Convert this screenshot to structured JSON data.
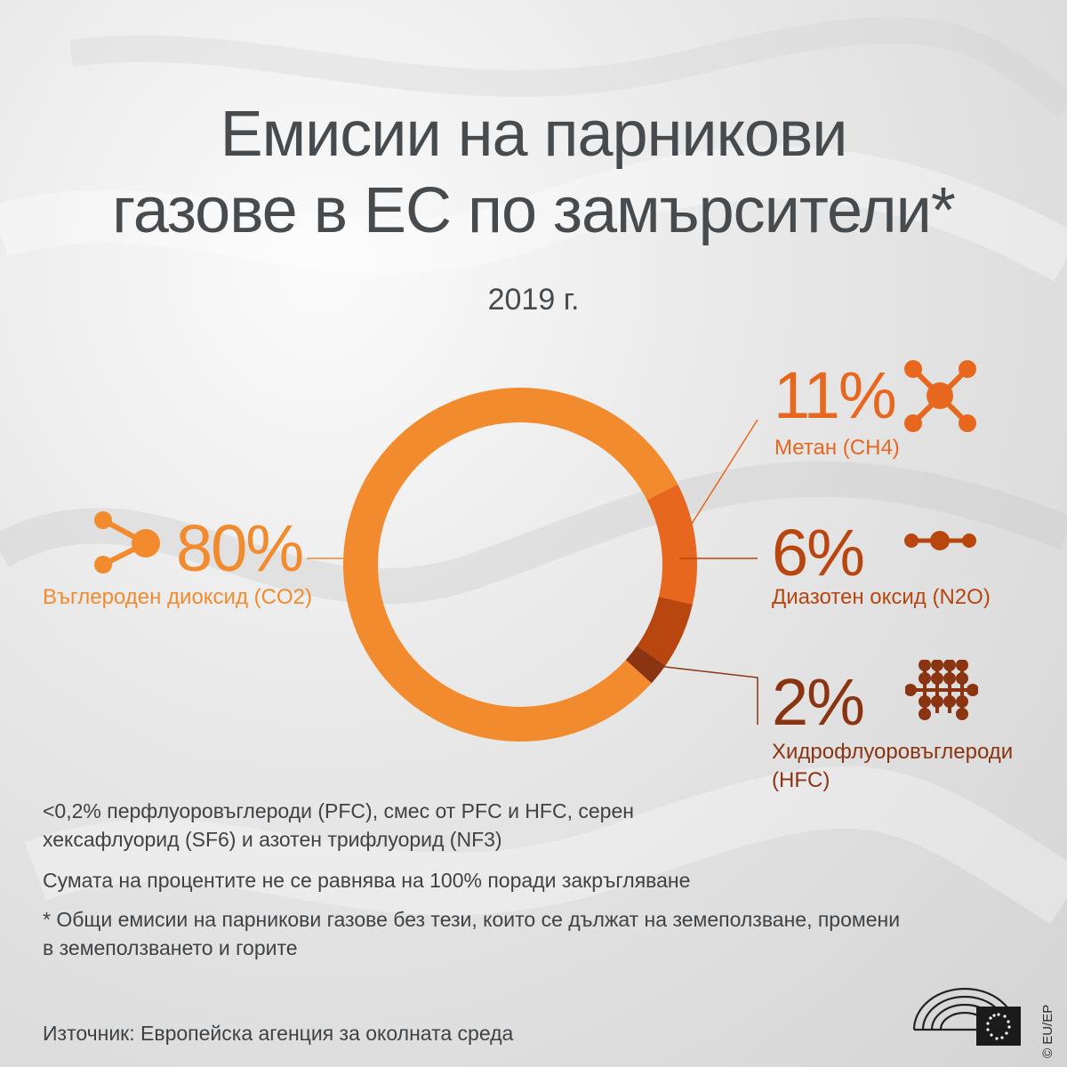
{
  "title_line1": "Емисии на парникови",
  "title_line2": "газове в ЕС по замърсители*",
  "year": "2019 г.",
  "chart_data": {
    "type": "pie",
    "title": "Емисии на парникови газове в ЕС по замърсители*",
    "subtitle": "2019 г.",
    "donut": true,
    "slices": [
      {
        "label": "Въглероден диоксид (CO2)",
        "value": 80,
        "display": "80%",
        "color": "#f28a2e"
      },
      {
        "label": "Метан (CH4)",
        "value": 11,
        "display": "11%",
        "color": "#e8671f"
      },
      {
        "label": "Диазотен оксид (N2O)",
        "value": 6,
        "display": "6%",
        "color": "#b9450f"
      },
      {
        "label": "Хидрофлуоровъглероди (HFC)",
        "value": 2,
        "display": "2%",
        "color": "#8b3412"
      }
    ]
  },
  "labels": {
    "co2": {
      "pct": "80%",
      "name": "Въглероден диоксид (CO2)",
      "icon": "co2-molecule-icon"
    },
    "ch4": {
      "pct": "11%",
      "name": "Метан (CH4)",
      "icon": "methane-molecule-icon"
    },
    "n2o": {
      "pct": "6%",
      "name": "Диазотен оксид (N2O)",
      "icon": "n2o-molecule-icon"
    },
    "hfc": {
      "pct": "2%",
      "name_line1": "Хидрофлуоровъглероди",
      "name_line2": "(HFC)",
      "icon": "hfc-molecule-icon"
    }
  },
  "notes": {
    "pfc_line1": "<0,2% перфлуоровъглероди (PFC), смес от PFC и HFC, серен",
    "pfc_line2": "хексафлуорид (SF6) и азотен трифлуорид (NF3)",
    "rounding": "Сумата на процентите не се равнява на 100% поради закръгляване",
    "asterisk_line1": "* Общи емисии на парникови газове без тези, които се дължат на земеползване, промени",
    "asterisk_line2": "в земеползването и горите",
    "source": "Източник: Европейска агенция за околната среда"
  },
  "credit": "© EU/EP"
}
